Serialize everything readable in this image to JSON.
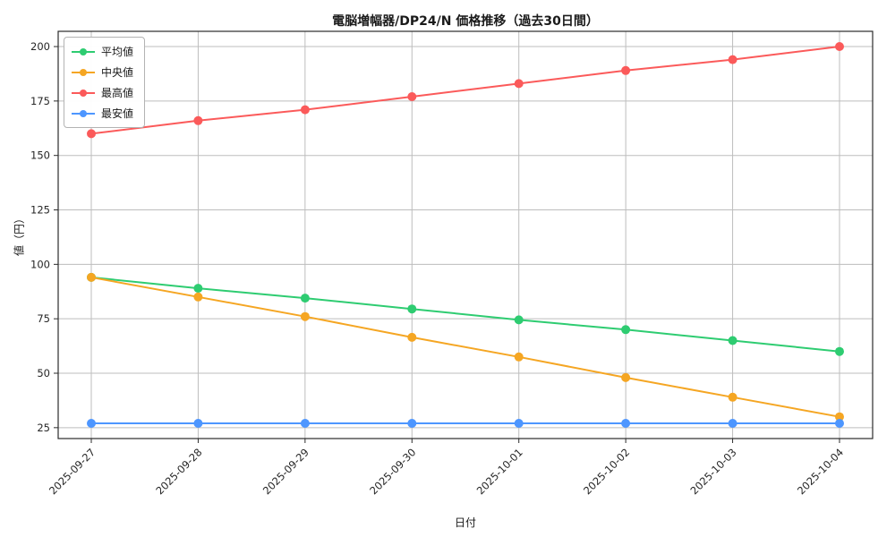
{
  "figure": {
    "title": "電脳増幅器/DP24/N 価格推移（過去30日間）",
    "xlabel": "日付",
    "ylabel": "値（円）"
  },
  "chart_data": {
    "type": "line",
    "title": "電脳増幅器/DP24/N 価格推移（過去30日間）",
    "xlabel": "日付",
    "ylabel": "値（円）",
    "categories": [
      "2025-09-27",
      "2025-09-28",
      "2025-09-29",
      "2025-09-30",
      "2025-10-01",
      "2025-10-02",
      "2025-10-03",
      "2025-10-04"
    ],
    "series": [
      {
        "name": "平均値",
        "color": "#2ecc71",
        "values": [
          94,
          89,
          84.5,
          79.5,
          74.5,
          70,
          65,
          60
        ]
      },
      {
        "name": "中央値",
        "color": "#f5a623",
        "values": [
          94,
          85,
          76,
          66.5,
          57.5,
          48,
          39,
          30
        ]
      },
      {
        "name": "最高値",
        "color": "#fb5a5a",
        "values": [
          160,
          166,
          171,
          177,
          183,
          189,
          194,
          200
        ]
      },
      {
        "name": "最安値",
        "color": "#4d96ff",
        "values": [
          27,
          27,
          27,
          27,
          27,
          27,
          27,
          27
        ]
      }
    ],
    "yticks": [
      25,
      50,
      75,
      100,
      125,
      150,
      175,
      200
    ],
    "ylim": [
      20,
      207
    ],
    "grid": true,
    "legend_position": "upper left",
    "grid_color": "#bdbdbd",
    "spine_color": "#2b2b2b",
    "tick_label_color": "#262626"
  }
}
